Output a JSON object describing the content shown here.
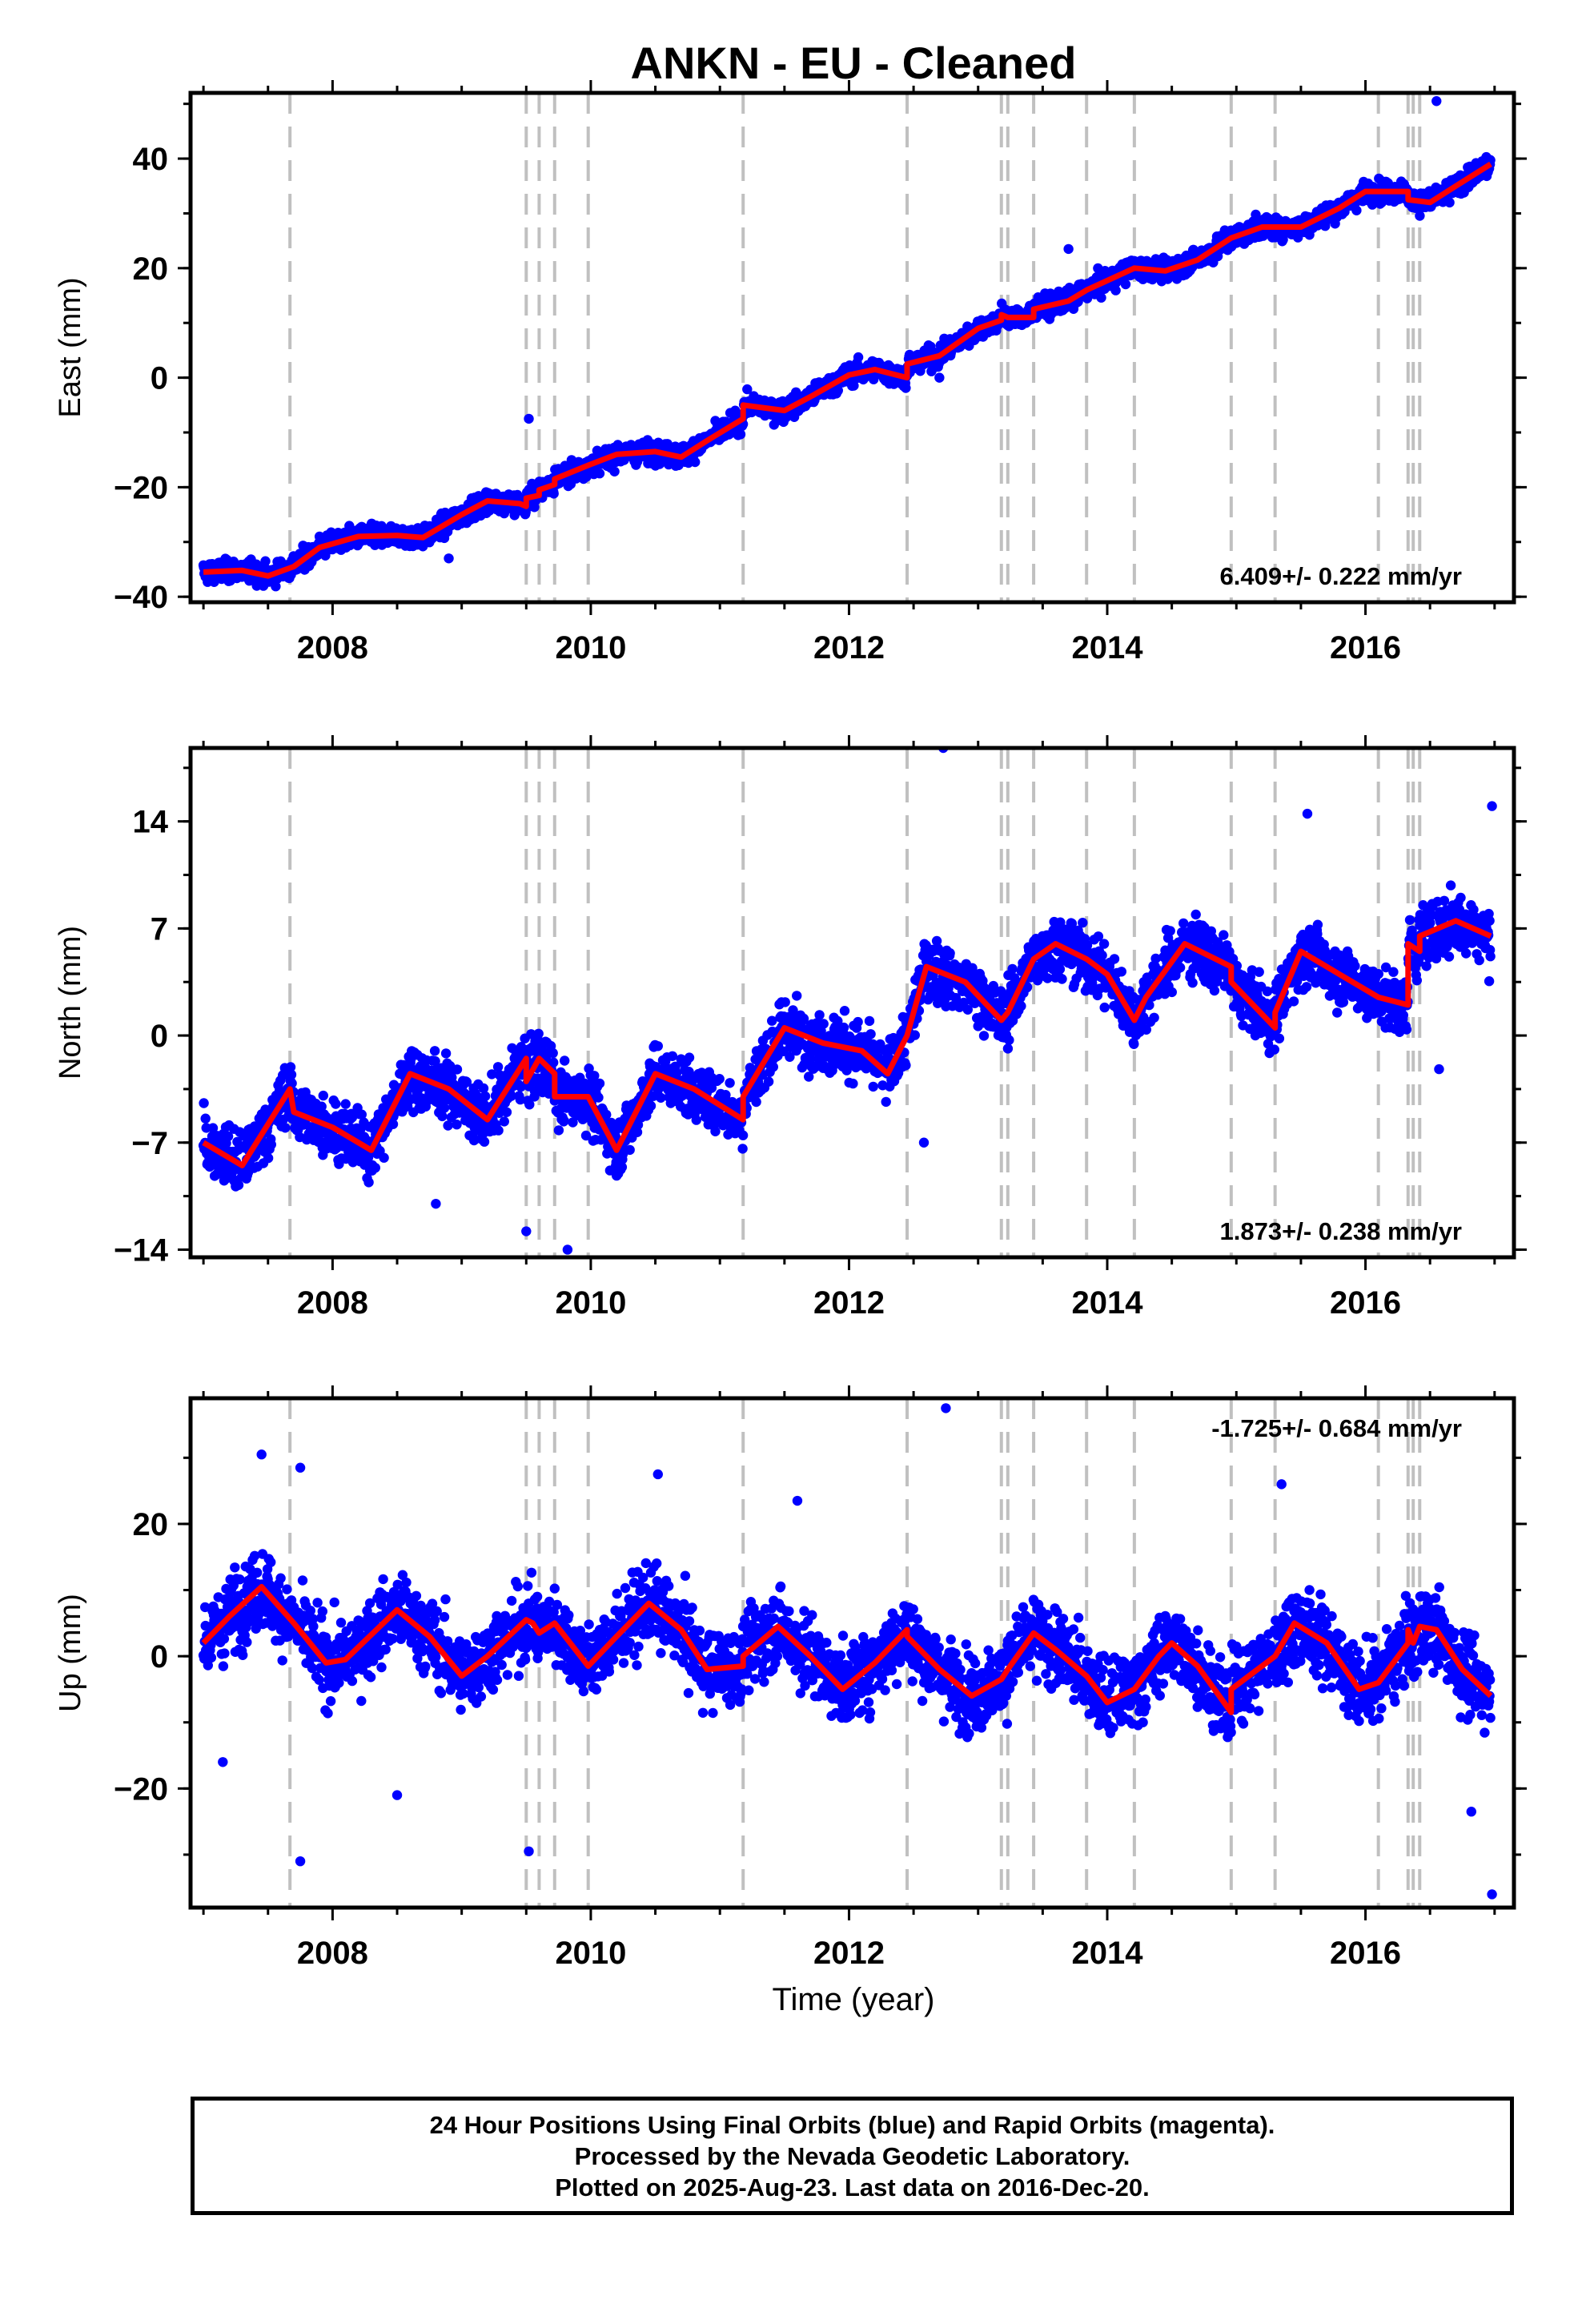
{
  "title": "ANKN  - EU - Cleaned",
  "colors": {
    "data": "#0000ff",
    "model": "#ff0000",
    "breaks": "#c0c0c0",
    "axis": "#000000"
  },
  "chart_data": {
    "type": "scatter",
    "xlabel": "Time (year)",
    "xlim": [
      2006.9,
      2017.15
    ],
    "xticks": [
      "2008",
      "2010",
      "2012",
      "2014",
      "2016"
    ],
    "breaks": [
      2007.67,
      2009.5,
      2009.6,
      2009.72,
      2009.98,
      2011.18,
      2012.45,
      2013.18,
      2013.23,
      2013.43,
      2013.84,
      2014.21,
      2014.96,
      2015.3,
      2016.1,
      2016.33,
      2016.37,
      2016.42
    ],
    "data_end": 2016.97,
    "panels": [
      {
        "id": "east",
        "ylabel": "East (mm)",
        "ylim": [
          -41,
          52
        ],
        "yticks": [
          "40",
          "20",
          "0",
          "−20",
          "−40"
        ],
        "ytick_values": [
          40,
          20,
          0,
          -20,
          -40
        ],
        "rate": "6.409+/- 0.222 mm/yr",
        "rate_position": "bottom-right",
        "model": [
          [
            2007.0,
            -35.5
          ],
          [
            2007.3,
            -35.2
          ],
          [
            2007.5,
            -36.2
          ],
          [
            2007.7,
            -34.5
          ],
          [
            2007.9,
            -31
          ],
          [
            2008.2,
            -29
          ],
          [
            2008.5,
            -28.8
          ],
          [
            2008.7,
            -29.2
          ],
          [
            2009.0,
            -25
          ],
          [
            2009.2,
            -22.5
          ],
          [
            2009.45,
            -23
          ],
          [
            2009.5,
            -23.5
          ],
          [
            2009.5,
            -22
          ],
          [
            2009.6,
            -21.5
          ],
          [
            2009.6,
            -20.5
          ],
          [
            2009.72,
            -19.5
          ],
          [
            2009.72,
            -18.5
          ],
          [
            2009.98,
            -16
          ],
          [
            2010.2,
            -14
          ],
          [
            2010.5,
            -13.5
          ],
          [
            2010.7,
            -14.5
          ],
          [
            2010.9,
            -11.5
          ],
          [
            2011.18,
            -7.5
          ],
          [
            2011.18,
            -5
          ],
          [
            2011.5,
            -6
          ],
          [
            2011.7,
            -3.5
          ],
          [
            2012.0,
            0.5
          ],
          [
            2012.2,
            1.5
          ],
          [
            2012.45,
            0
          ],
          [
            2012.45,
            2.5
          ],
          [
            2012.7,
            4
          ],
          [
            2013.0,
            9
          ],
          [
            2013.18,
            10.5
          ],
          [
            2013.18,
            11.5
          ],
          [
            2013.23,
            11
          ],
          [
            2013.43,
            11
          ],
          [
            2013.43,
            12.5
          ],
          [
            2013.7,
            14
          ],
          [
            2013.84,
            16
          ],
          [
            2014.21,
            20
          ],
          [
            2014.45,
            19.5
          ],
          [
            2014.7,
            21.5
          ],
          [
            2014.96,
            25.5
          ],
          [
            2015.2,
            27.5
          ],
          [
            2015.3,
            27.5
          ],
          [
            2015.5,
            27.5
          ],
          [
            2015.8,
            31
          ],
          [
            2016.0,
            34
          ],
          [
            2016.33,
            34
          ],
          [
            2016.33,
            32.5
          ],
          [
            2016.5,
            32
          ],
          [
            2016.7,
            35
          ],
          [
            2016.97,
            39
          ]
        ],
        "trend": [
          -36,
          38
        ],
        "noise": 1.6,
        "outliers": [
          [
            2016.55,
            50.5
          ],
          [
            2009.52,
            -7.5
          ],
          [
            2013.7,
            23.5
          ],
          [
            2012.7,
            0
          ],
          [
            2008.9,
            -33
          ]
        ]
      },
      {
        "id": "north",
        "ylabel": "North (mm)",
        "ylim": [
          -14.5,
          18.8
        ],
        "yticks": [
          "14",
          "7",
          "0",
          "−7",
          "−14"
        ],
        "ytick_values": [
          14,
          7,
          0,
          -7,
          -14
        ],
        "rate": "1.873+/- 0.238 mm/yr",
        "rate_position": "bottom-right",
        "model": [
          [
            2007.0,
            -7
          ],
          [
            2007.3,
            -8.5
          ],
          [
            2007.67,
            -3.5
          ],
          [
            2007.7,
            -5
          ],
          [
            2008.0,
            -6
          ],
          [
            2008.3,
            -7.5
          ],
          [
            2008.6,
            -2.5
          ],
          [
            2008.9,
            -3.5
          ],
          [
            2009.2,
            -5.5
          ],
          [
            2009.5,
            -1.5
          ],
          [
            2009.5,
            -3
          ],
          [
            2009.6,
            -1.5
          ],
          [
            2009.72,
            -2.5
          ],
          [
            2009.72,
            -4
          ],
          [
            2009.98,
            -4
          ],
          [
            2010.2,
            -7.5
          ],
          [
            2010.5,
            -2.5
          ],
          [
            2010.8,
            -3.5
          ],
          [
            2011.18,
            -5.5
          ],
          [
            2011.18,
            -4
          ],
          [
            2011.5,
            0.5
          ],
          [
            2011.8,
            -0.5
          ],
          [
            2012.1,
            -1
          ],
          [
            2012.3,
            -2.5
          ],
          [
            2012.45,
            0
          ],
          [
            2012.6,
            4.5
          ],
          [
            2012.9,
            3.5
          ],
          [
            2013.18,
            1
          ],
          [
            2013.23,
            1.5
          ],
          [
            2013.43,
            5
          ],
          [
            2013.6,
            6
          ],
          [
            2013.84,
            5
          ],
          [
            2014.0,
            4
          ],
          [
            2014.21,
            1
          ],
          [
            2014.3,
            2.5
          ],
          [
            2014.6,
            6
          ],
          [
            2014.96,
            4.5
          ],
          [
            2014.96,
            3.5
          ],
          [
            2015.3,
            0.5
          ],
          [
            2015.3,
            1.5
          ],
          [
            2015.5,
            5.5
          ],
          [
            2015.8,
            4
          ],
          [
            2016.1,
            2.5
          ],
          [
            2016.33,
            2
          ],
          [
            2016.33,
            6
          ],
          [
            2016.42,
            5.5
          ],
          [
            2016.42,
            6.5
          ],
          [
            2016.7,
            7.5
          ],
          [
            2016.97,
            6.5
          ]
        ],
        "trend": [
          -5,
          7
        ],
        "noise": 1.6,
        "outliers": [
          [
            2012.73,
            18.8
          ],
          [
            2015.55,
            14.5
          ],
          [
            2016.98,
            15
          ],
          [
            2009.5,
            -12.8
          ],
          [
            2009.82,
            -14
          ],
          [
            2012.58,
            -7
          ],
          [
            2016.57,
            -2.2
          ],
          [
            2008.8,
            -11
          ]
        ]
      },
      {
        "id": "up",
        "ylabel": "Up (mm)",
        "ylim": [
          -38,
          39
        ],
        "yticks": [
          "20",
          "0",
          "−20"
        ],
        "ytick_values": [
          20,
          0,
          -20
        ],
        "rate": "-1.725+/- 0.684 mm/yr",
        "rate_position": "top-right",
        "model": [
          [
            2007.0,
            2
          ],
          [
            2007.2,
            6
          ],
          [
            2007.45,
            10.5
          ],
          [
            2007.7,
            5
          ],
          [
            2007.95,
            -1
          ],
          [
            2008.1,
            -0.5
          ],
          [
            2008.5,
            7
          ],
          [
            2008.75,
            3
          ],
          [
            2009.0,
            -3
          ],
          [
            2009.2,
            0
          ],
          [
            2009.5,
            5.5
          ],
          [
            2009.55,
            5
          ],
          [
            2009.6,
            3.5
          ],
          [
            2009.72,
            5
          ],
          [
            2009.98,
            -1.5
          ],
          [
            2010.2,
            3
          ],
          [
            2010.45,
            8
          ],
          [
            2010.7,
            4
          ],
          [
            2010.9,
            -2
          ],
          [
            2011.18,
            -1.5
          ],
          [
            2011.18,
            0
          ],
          [
            2011.45,
            4.5
          ],
          [
            2011.7,
            0
          ],
          [
            2011.95,
            -5
          ],
          [
            2012.2,
            -1
          ],
          [
            2012.45,
            4
          ],
          [
            2012.45,
            3
          ],
          [
            2012.7,
            -2
          ],
          [
            2012.95,
            -6
          ],
          [
            2013.18,
            -3.5
          ],
          [
            2013.23,
            -2
          ],
          [
            2013.43,
            3.5
          ],
          [
            2013.6,
            1
          ],
          [
            2013.84,
            -3
          ],
          [
            2014.0,
            -7
          ],
          [
            2014.21,
            -5
          ],
          [
            2014.4,
            0
          ],
          [
            2014.5,
            2
          ],
          [
            2014.7,
            -1.5
          ],
          [
            2014.96,
            -8.5
          ],
          [
            2014.96,
            -5
          ],
          [
            2015.3,
            0
          ],
          [
            2015.45,
            5
          ],
          [
            2015.7,
            2
          ],
          [
            2015.95,
            -5
          ],
          [
            2016.1,
            -4
          ],
          [
            2016.33,
            2
          ],
          [
            2016.33,
            4
          ],
          [
            2016.37,
            2
          ],
          [
            2016.42,
            4.5
          ],
          [
            2016.55,
            4
          ],
          [
            2016.75,
            -2
          ],
          [
            2016.97,
            -6
          ]
        ],
        "trend": [
          0,
          0
        ],
        "noise": 4.8,
        "outliers": [
          [
            2012.75,
            37.5
          ],
          [
            2007.45,
            30.5
          ],
          [
            2007.75,
            28.5
          ],
          [
            2010.52,
            27.5
          ],
          [
            2015.35,
            26
          ],
          [
            2016.98,
            -36
          ],
          [
            2007.75,
            -31
          ],
          [
            2009.52,
            -29.5
          ],
          [
            2008.5,
            -21
          ],
          [
            2016.82,
            -23.5
          ],
          [
            2007.15,
            -16
          ],
          [
            2011.6,
            23.5
          ]
        ]
      }
    ]
  },
  "footer": {
    "line1": "24 Hour Positions Using Final Orbits (blue) and Rapid Orbits (magenta).",
    "line2": "Processed by the Nevada Geodetic Laboratory.",
    "line3": "Plotted on 2025-Aug-23. Last data on 2016-Dec-20."
  }
}
